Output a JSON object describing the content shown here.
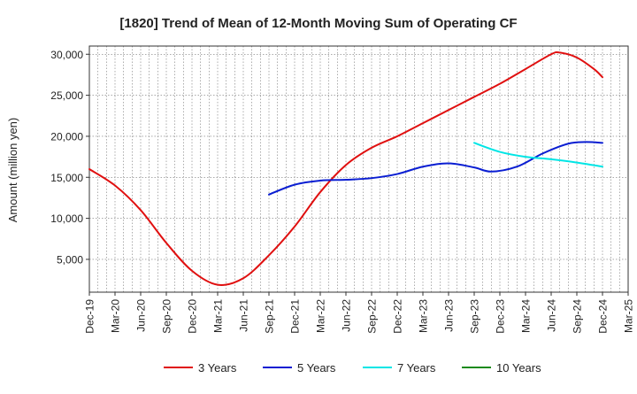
{
  "chart_data": {
    "type": "line",
    "title": "[1820]  Trend of Mean of 12-Month Moving Sum of Operating CF",
    "xlabel": "",
    "ylabel": "Amount (million yen)",
    "ylim": [
      1000,
      31000
    ],
    "yticks": [
      5000,
      10000,
      15000,
      20000,
      25000,
      30000
    ],
    "ytick_labels": [
      "5,000",
      "10,000",
      "15,000",
      "20,000",
      "25,000",
      "30,000"
    ],
    "categories": [
      "Dec-19",
      "Mar-20",
      "Jun-20",
      "Sep-20",
      "Dec-20",
      "Mar-21",
      "Jun-21",
      "Sep-21",
      "Dec-21",
      "Mar-22",
      "Jun-22",
      "Sep-22",
      "Dec-22",
      "Mar-23",
      "Jun-23",
      "Sep-23",
      "Dec-23",
      "Mar-24",
      "Jun-24",
      "Sep-24",
      "Dec-24",
      "Mar-25"
    ],
    "x_months_total": 63,
    "grid": true,
    "legend_position": "bottom",
    "series": [
      {
        "name": "3 Years",
        "color": "#e01010",
        "points": [
          [
            0,
            16000
          ],
          [
            3,
            14000
          ],
          [
            6,
            11000
          ],
          [
            9,
            7000
          ],
          [
            12,
            3600
          ],
          [
            15,
            1900
          ],
          [
            18,
            2700
          ],
          [
            21,
            5500
          ],
          [
            24,
            9000
          ],
          [
            27,
            13200
          ],
          [
            30,
            16500
          ],
          [
            33,
            18600
          ],
          [
            36,
            20000
          ],
          [
            39,
            21600
          ],
          [
            42,
            23200
          ],
          [
            45,
            24800
          ],
          [
            48,
            26400
          ],
          [
            51,
            28200
          ],
          [
            54,
            30000
          ],
          [
            55,
            30200
          ],
          [
            57,
            29600
          ],
          [
            59,
            28200
          ],
          [
            60,
            27200
          ]
        ]
      },
      {
        "name": "5 Years",
        "color": "#0a1ed2",
        "points": [
          [
            21,
            12900
          ],
          [
            24,
            14100
          ],
          [
            27,
            14600
          ],
          [
            30,
            14700
          ],
          [
            33,
            14900
          ],
          [
            36,
            15400
          ],
          [
            39,
            16300
          ],
          [
            42,
            16700
          ],
          [
            45,
            16200
          ],
          [
            47,
            15700
          ],
          [
            50,
            16300
          ],
          [
            53,
            17900
          ],
          [
            56,
            19100
          ],
          [
            58,
            19300
          ],
          [
            60,
            19200
          ]
        ]
      },
      {
        "name": "7 Years",
        "color": "#00e5e5",
        "points": [
          [
            45,
            19200
          ],
          [
            48,
            18100
          ],
          [
            51,
            17500
          ],
          [
            54,
            17200
          ],
          [
            57,
            16800
          ],
          [
            60,
            16300
          ]
        ]
      },
      {
        "name": "10 Years",
        "color": "#1a8a1a",
        "points": []
      }
    ]
  }
}
